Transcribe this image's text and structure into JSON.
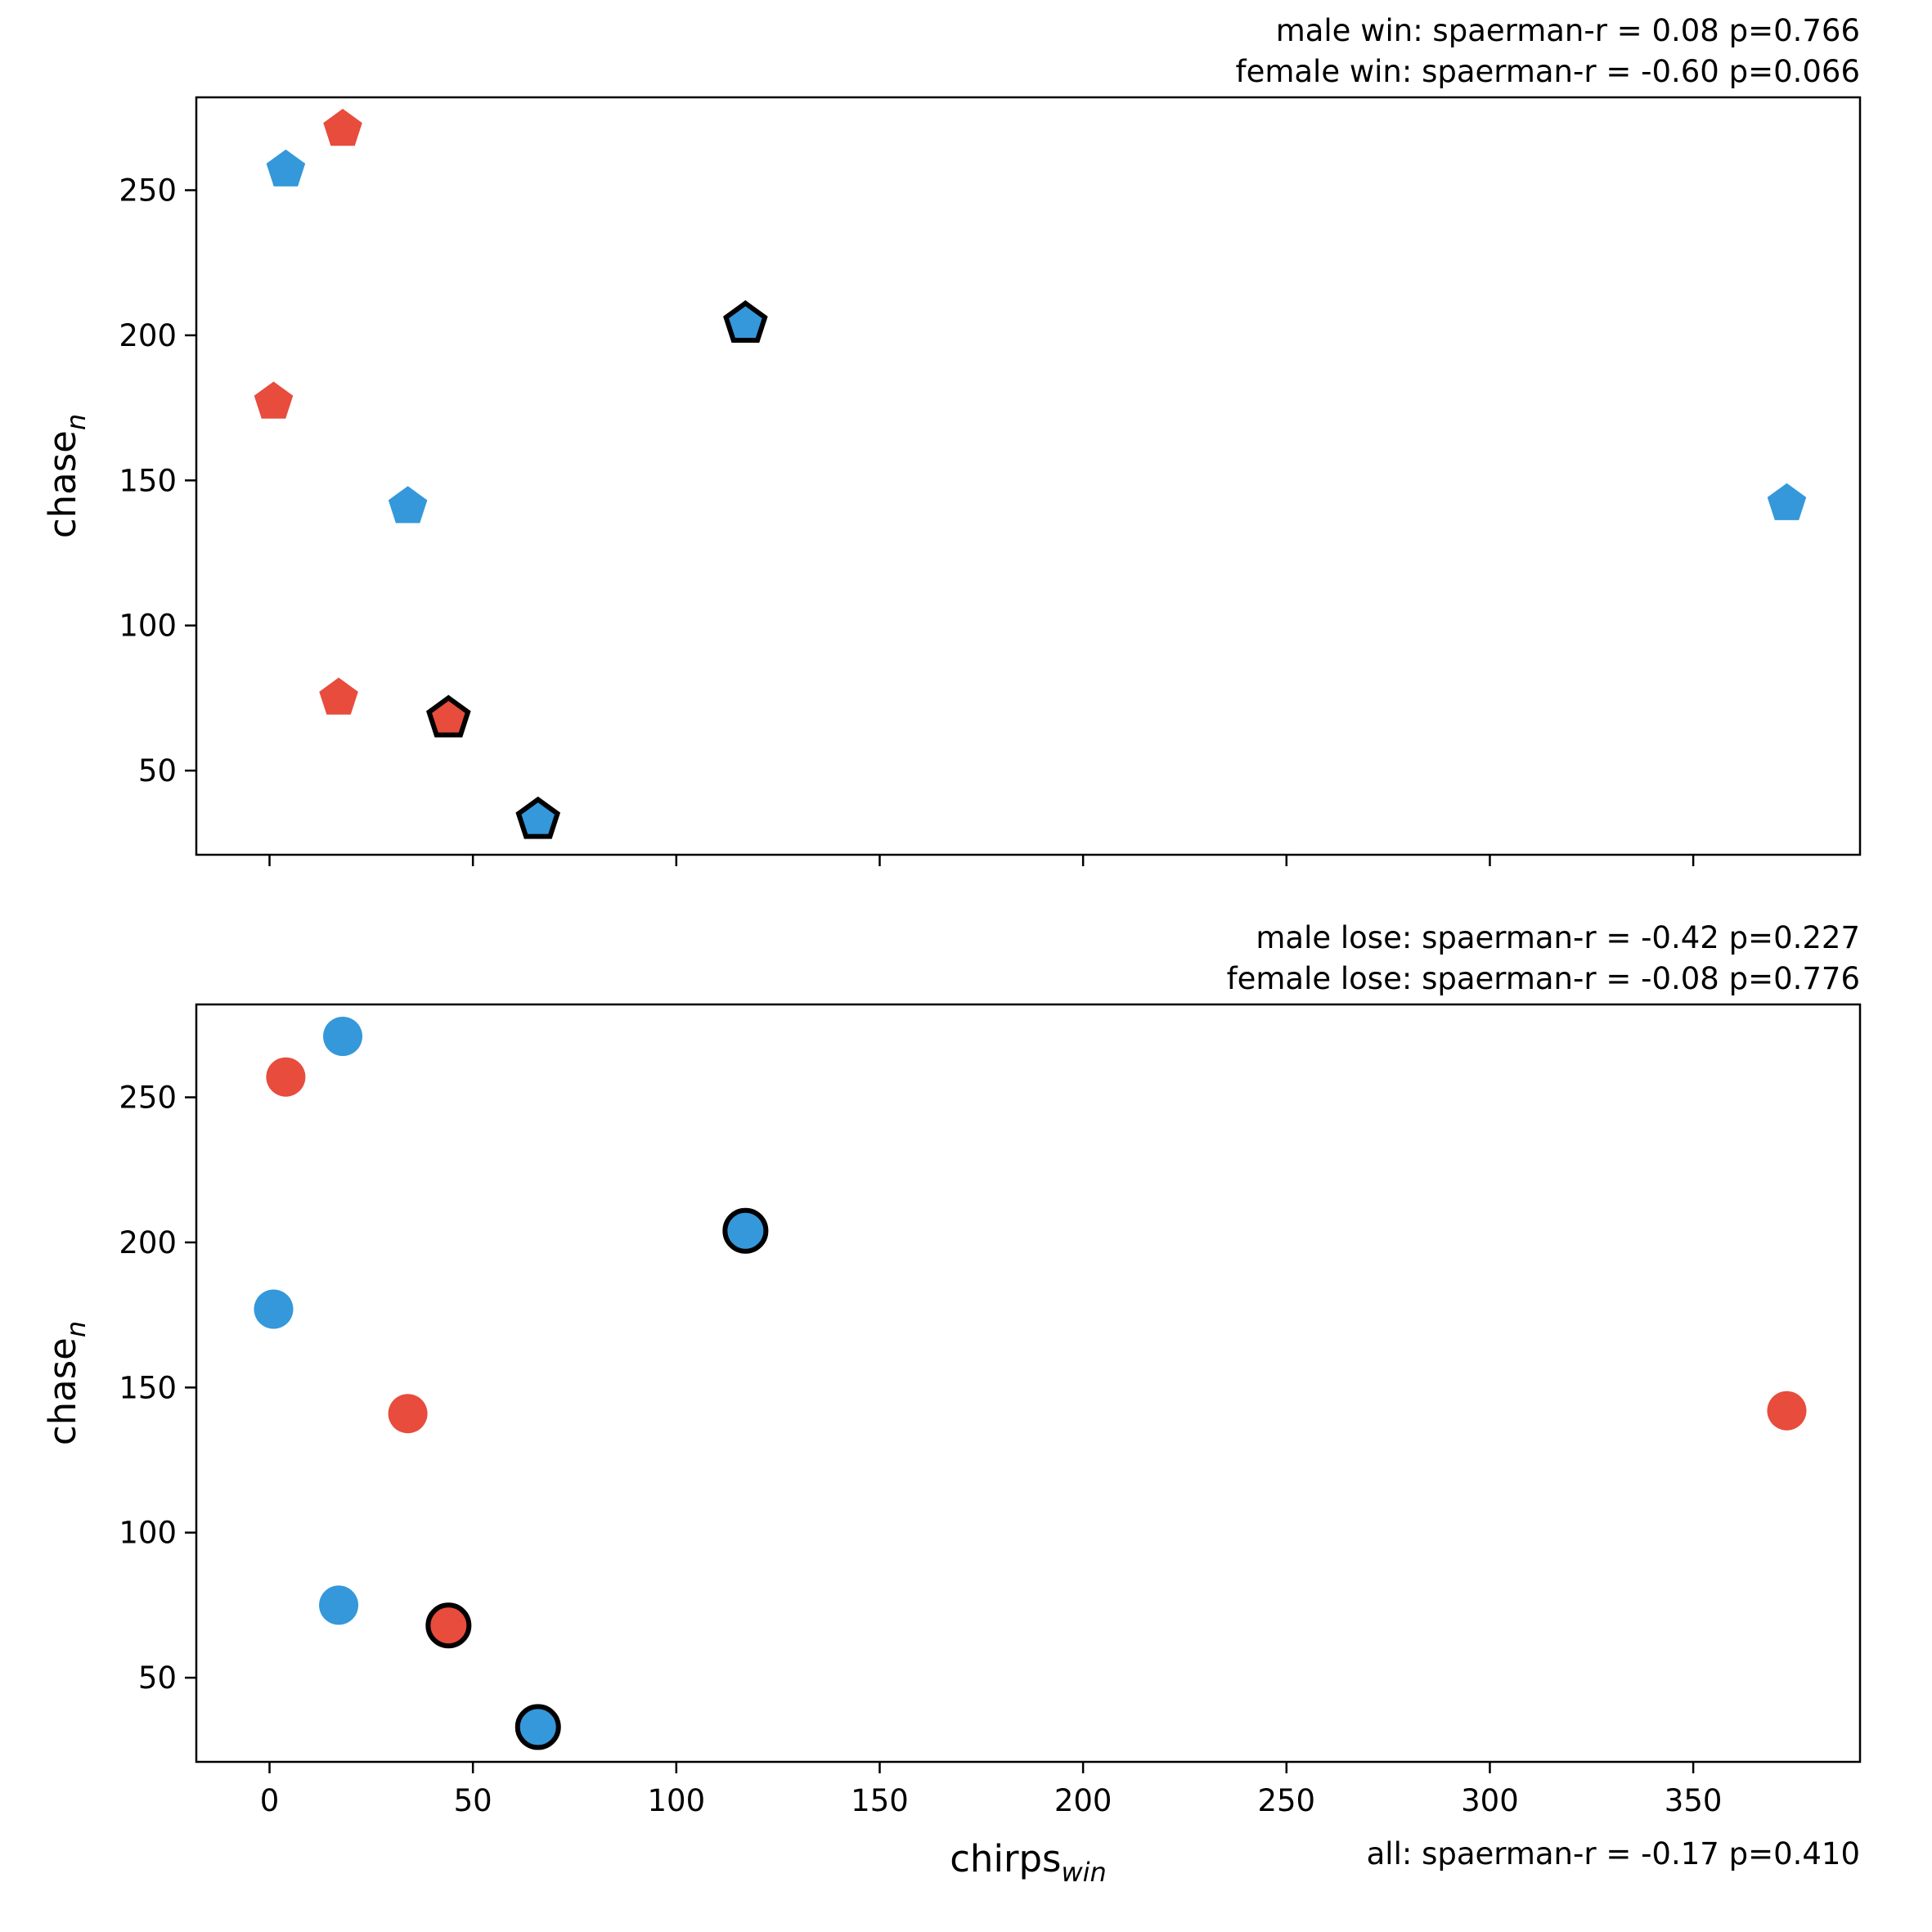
{
  "chart_data": [
    {
      "type": "scatter",
      "marker": "pentagon",
      "xlabel": {
        "main": "chirps",
        "sub": "win"
      },
      "ylabel": {
        "main": "chase",
        "sub": "n"
      },
      "xlim": [
        -18,
        391
      ],
      "ylim": [
        21,
        282
      ],
      "x_ticks": [
        0,
        50,
        100,
        150,
        200,
        250,
        300,
        350
      ],
      "y_ticks": [
        50,
        100,
        150,
        200,
        250
      ],
      "show_x_tick_labels": false,
      "stats": [
        "male win: spaerman-r = 0.08 p=0.766",
        "female win: spaerman-r = -0.60 p=0.066"
      ],
      "points": [
        {
          "x": 4,
          "y": 257,
          "color": "#3498db",
          "outlined": false
        },
        {
          "x": 18,
          "y": 271,
          "color": "#e74c3c",
          "outlined": false
        },
        {
          "x": 117,
          "y": 204,
          "color": "#3498db",
          "outlined": true
        },
        {
          "x": 1,
          "y": 177,
          "color": "#e74c3c",
          "outlined": false
        },
        {
          "x": 34,
          "y": 141,
          "color": "#3498db",
          "outlined": false
        },
        {
          "x": 373,
          "y": 142,
          "color": "#3498db",
          "outlined": false
        },
        {
          "x": 17,
          "y": 75,
          "color": "#e74c3c",
          "outlined": false
        },
        {
          "x": 44,
          "y": 68,
          "color": "#e74c3c",
          "outlined": true
        },
        {
          "x": 66,
          "y": 33,
          "color": "#3498db",
          "outlined": true
        }
      ]
    },
    {
      "type": "scatter",
      "marker": "circle",
      "xlabel": {
        "main": "chirps",
        "sub": "win"
      },
      "ylabel": {
        "main": "chase",
        "sub": "n"
      },
      "xlim": [
        -18,
        391
      ],
      "ylim": [
        21,
        282
      ],
      "x_ticks": [
        0,
        50,
        100,
        150,
        200,
        250,
        300,
        350
      ],
      "y_ticks": [
        50,
        100,
        150,
        200,
        250
      ],
      "show_x_tick_labels": true,
      "stats": [
        "male lose: spaerman-r = -0.42 p=0.227",
        "female lose: spaerman-r = -0.08 p=0.776"
      ],
      "footer": "all: spaerman-r = -0.17 p=0.410",
      "points": [
        {
          "x": 4,
          "y": 257,
          "color": "#e74c3c",
          "outlined": false
        },
        {
          "x": 18,
          "y": 271,
          "color": "#3498db",
          "outlined": false
        },
        {
          "x": 117,
          "y": 204,
          "color": "#3498db",
          "outlined": true
        },
        {
          "x": 1,
          "y": 177,
          "color": "#3498db",
          "outlined": false
        },
        {
          "x": 34,
          "y": 141,
          "color": "#e74c3c",
          "outlined": false
        },
        {
          "x": 373,
          "y": 142,
          "color": "#e74c3c",
          "outlined": false
        },
        {
          "x": 17,
          "y": 75,
          "color": "#3498db",
          "outlined": false
        },
        {
          "x": 44,
          "y": 68,
          "color": "#e74c3c",
          "outlined": true
        },
        {
          "x": 66,
          "y": 33,
          "color": "#3498db",
          "outlined": true
        }
      ]
    }
  ]
}
